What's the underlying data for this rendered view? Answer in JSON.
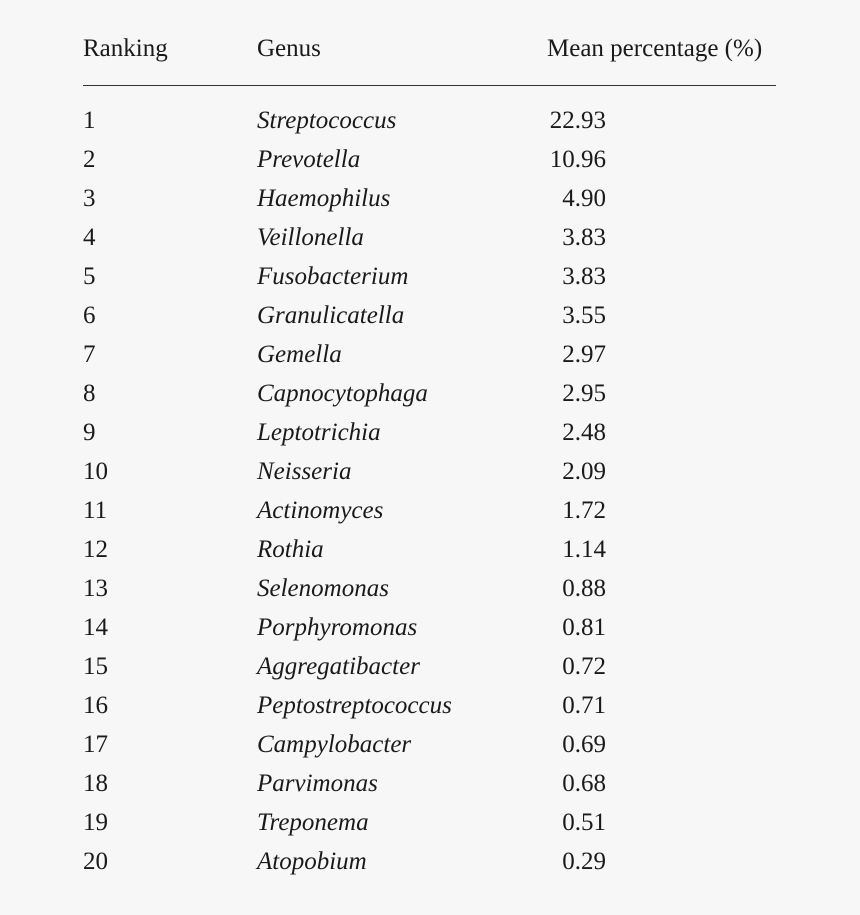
{
  "table": {
    "headers": {
      "ranking": "Ranking",
      "genus": "Genus",
      "mean": "Mean percentage (%)"
    },
    "rows": [
      {
        "rank": "1",
        "genus": "Streptococcus",
        "mean": "22.93"
      },
      {
        "rank": "2",
        "genus": "Prevotella",
        "mean": "10.96"
      },
      {
        "rank": "3",
        "genus": "Haemophilus",
        "mean": "4.90"
      },
      {
        "rank": "4",
        "genus": "Veillonella",
        "mean": "3.83"
      },
      {
        "rank": "5",
        "genus": "Fusobacterium",
        "mean": "3.83"
      },
      {
        "rank": "6",
        "genus": "Granulicatella",
        "mean": "3.55"
      },
      {
        "rank": "7",
        "genus": "Gemella",
        "mean": "2.97"
      },
      {
        "rank": "8",
        "genus": "Capnocytophaga",
        "mean": "2.95"
      },
      {
        "rank": "9",
        "genus": "Leptotrichia",
        "mean": "2.48"
      },
      {
        "rank": "10",
        "genus": "Neisseria",
        "mean": "2.09"
      },
      {
        "rank": "11",
        "genus": "Actinomyces",
        "mean": "1.72"
      },
      {
        "rank": "12",
        "genus": "Rothia",
        "mean": "1.14"
      },
      {
        "rank": "13",
        "genus": "Selenomonas",
        "mean": "0.88"
      },
      {
        "rank": "14",
        "genus": "Porphyromonas",
        "mean": "0.81"
      },
      {
        "rank": "15",
        "genus": "Aggregatibacter",
        "mean": "0.72"
      },
      {
        "rank": "16",
        "genus": "Peptostreptococcus",
        "mean": "0.71"
      },
      {
        "rank": "17",
        "genus": "Campylobacter",
        "mean": "0.69"
      },
      {
        "rank": "18",
        "genus": "Parvimonas",
        "mean": "0.68"
      },
      {
        "rank": "19",
        "genus": "Treponema",
        "mean": "0.51"
      },
      {
        "rank": "20",
        "genus": "Atopobium",
        "mean": "0.29"
      }
    ]
  }
}
